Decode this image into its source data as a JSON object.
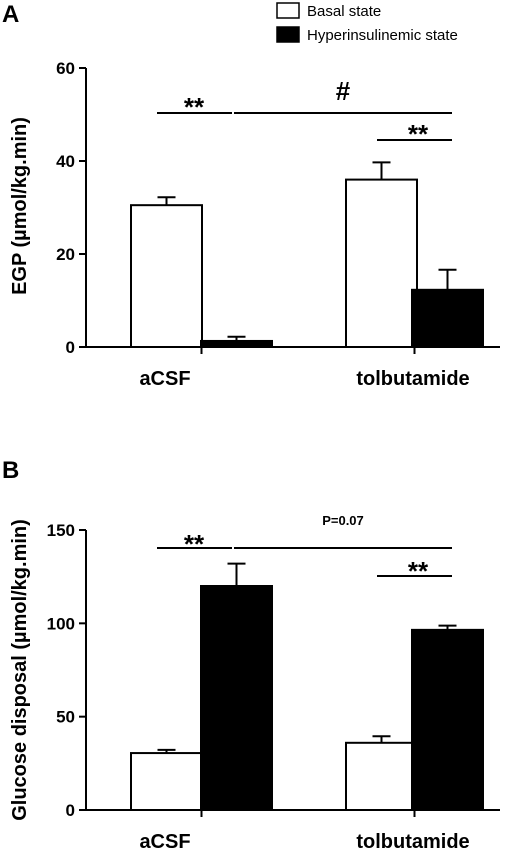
{
  "legend": [
    {
      "label": "Basal state",
      "fill": "#ffffff"
    },
    {
      "label": "Hyperinsulinemic state",
      "fill": "#000000"
    }
  ],
  "chart_data": [
    {
      "panel": "A",
      "type": "bar",
      "ylabel": "EGP (µmol/kg.min)",
      "ylim": [
        0,
        60
      ],
      "yticks": [
        0,
        20,
        40,
        60
      ],
      "categories": [
        "aCSF",
        "tolbutamide"
      ],
      "series": [
        {
          "name": "Basal state",
          "values": [
            30.5,
            36.0
          ],
          "errors": [
            1.7,
            3.7
          ]
        },
        {
          "name": "Hyperinsulinemic state",
          "values": [
            1.3,
            12.3
          ],
          "errors": [
            0.9,
            4.3
          ]
        }
      ],
      "annotations": [
        {
          "text": "**",
          "between": "aCSF Basal vs aCSF Hyperinsulinemic"
        },
        {
          "text": "#",
          "between": "aCSF vs tolbutamide"
        },
        {
          "text": "**",
          "between": "tolbutamide Basal vs tolbutamide Hyperinsulinemic"
        }
      ]
    },
    {
      "panel": "B",
      "type": "bar",
      "ylabel": "Glucose disposal (µmol/kg.min)",
      "ylim": [
        0,
        150
      ],
      "yticks": [
        0,
        50,
        100,
        150
      ],
      "categories": [
        "aCSF",
        "tolbutamide"
      ],
      "series": [
        {
          "name": "Basal state",
          "values": [
            30.5,
            36.0
          ],
          "errors": [
            1.7,
            3.5
          ]
        },
        {
          "name": "Hyperinsulinemic state",
          "values": [
            120.0,
            96.5
          ],
          "errors": [
            12.0,
            2.3
          ]
        }
      ],
      "annotations": [
        {
          "text": "**",
          "between": "aCSF Basal vs aCSF Hyperinsulinemic"
        },
        {
          "text": "P=0.07",
          "between": "aCSF vs tolbutamide"
        },
        {
          "text": "**",
          "between": "tolbutamide Basal vs tolbutamide Hyperinsulinemic"
        }
      ]
    }
  ]
}
